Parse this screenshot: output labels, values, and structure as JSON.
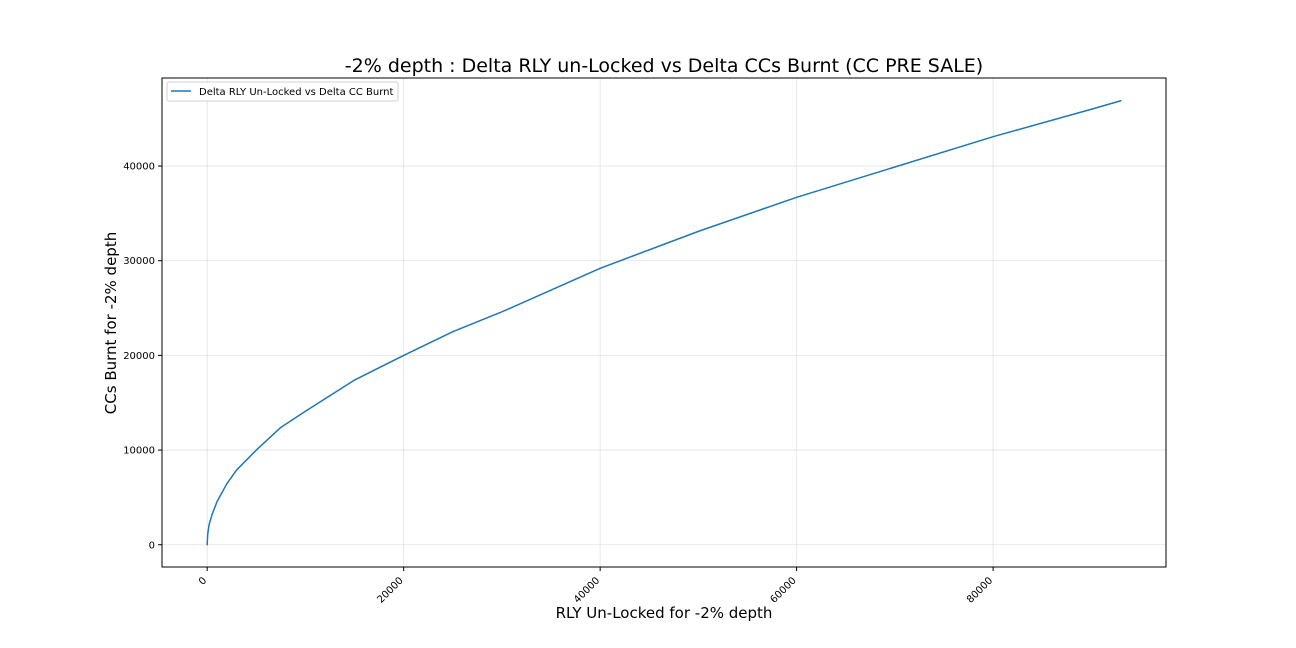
{
  "chart_data": {
    "type": "line",
    "title": "-2% depth : Delta RLY un-Locked vs Delta CCs Burnt (CC PRE SALE)",
    "xlabel": "RLY Un-Locked for -2% depth",
    "ylabel": "CCs Burnt for -2% depth",
    "xlim": [
      -4600,
      97600
    ],
    "ylim": [
      -2350,
      49300
    ],
    "xticks": [
      0,
      20000,
      40000,
      60000,
      80000
    ],
    "yticks": [
      0,
      10000,
      20000,
      30000,
      40000
    ],
    "grid": true,
    "legend_position": "top-left",
    "series": [
      {
        "name": "Delta RLY Un-Locked vs Delta CC Burnt",
        "color": "#1f77b4",
        "x": [
          0,
          50,
          200,
          500,
          1000,
          2000,
          3000,
          5000,
          7500,
          10000,
          15000,
          20000,
          25000,
          30000,
          40000,
          50000,
          60000,
          70000,
          80000,
          90000,
          93000
        ],
        "y": [
          0,
          1100,
          2150,
          3200,
          4550,
          6450,
          7900,
          10000,
          12400,
          14100,
          17400,
          20000,
          22500,
          24600,
          29200,
          33100,
          36700,
          39900,
          43100,
          46000,
          46900
        ]
      }
    ]
  }
}
